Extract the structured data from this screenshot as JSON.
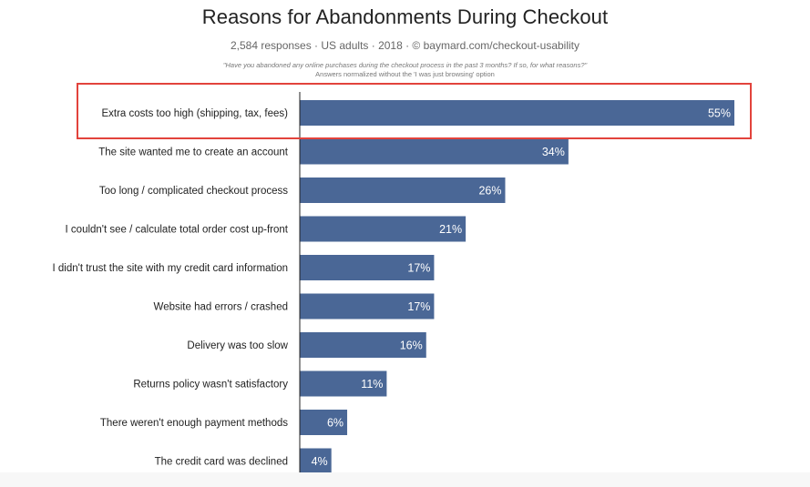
{
  "chart_data": {
    "type": "bar",
    "orientation": "horizontal",
    "title": "Reasons for Abandonments During Checkout",
    "subtitle": "2,584 responses · US adults · 2018 · © baymard.com/checkout-usability",
    "question": "\"Have you abandoned any online purchases during the checkout process in the past 3 months? If so, for what reasons?\"",
    "note": "Answers normalized without the 'I was just browsing' option",
    "categories": [
      "Extra costs too high (shipping, tax, fees)",
      "The site wanted me to create an account",
      "Too long / complicated checkout process",
      "I couldn't see / calculate total order cost up-front",
      "I didn't trust the site with my credit card information",
      "Website had errors / crashed",
      "Delivery was too slow",
      "Returns policy wasn't satisfactory",
      "There weren't enough payment methods",
      "The credit card was declined"
    ],
    "values": [
      55,
      34,
      26,
      21,
      17,
      17,
      16,
      11,
      6,
      4
    ],
    "value_labels": [
      "55%",
      "34%",
      "26%",
      "21%",
      "17%",
      "17%",
      "16%",
      "11%",
      "6%",
      "4%"
    ],
    "unit": "%",
    "xlim": [
      0,
      55
    ],
    "grid": false,
    "legend": "none",
    "highlighted_category_index": 0,
    "colors": {
      "bar": "#4a6796",
      "highlight_box": "#e2433c",
      "axis": "#222222",
      "value_label": "#ffffff"
    }
  }
}
